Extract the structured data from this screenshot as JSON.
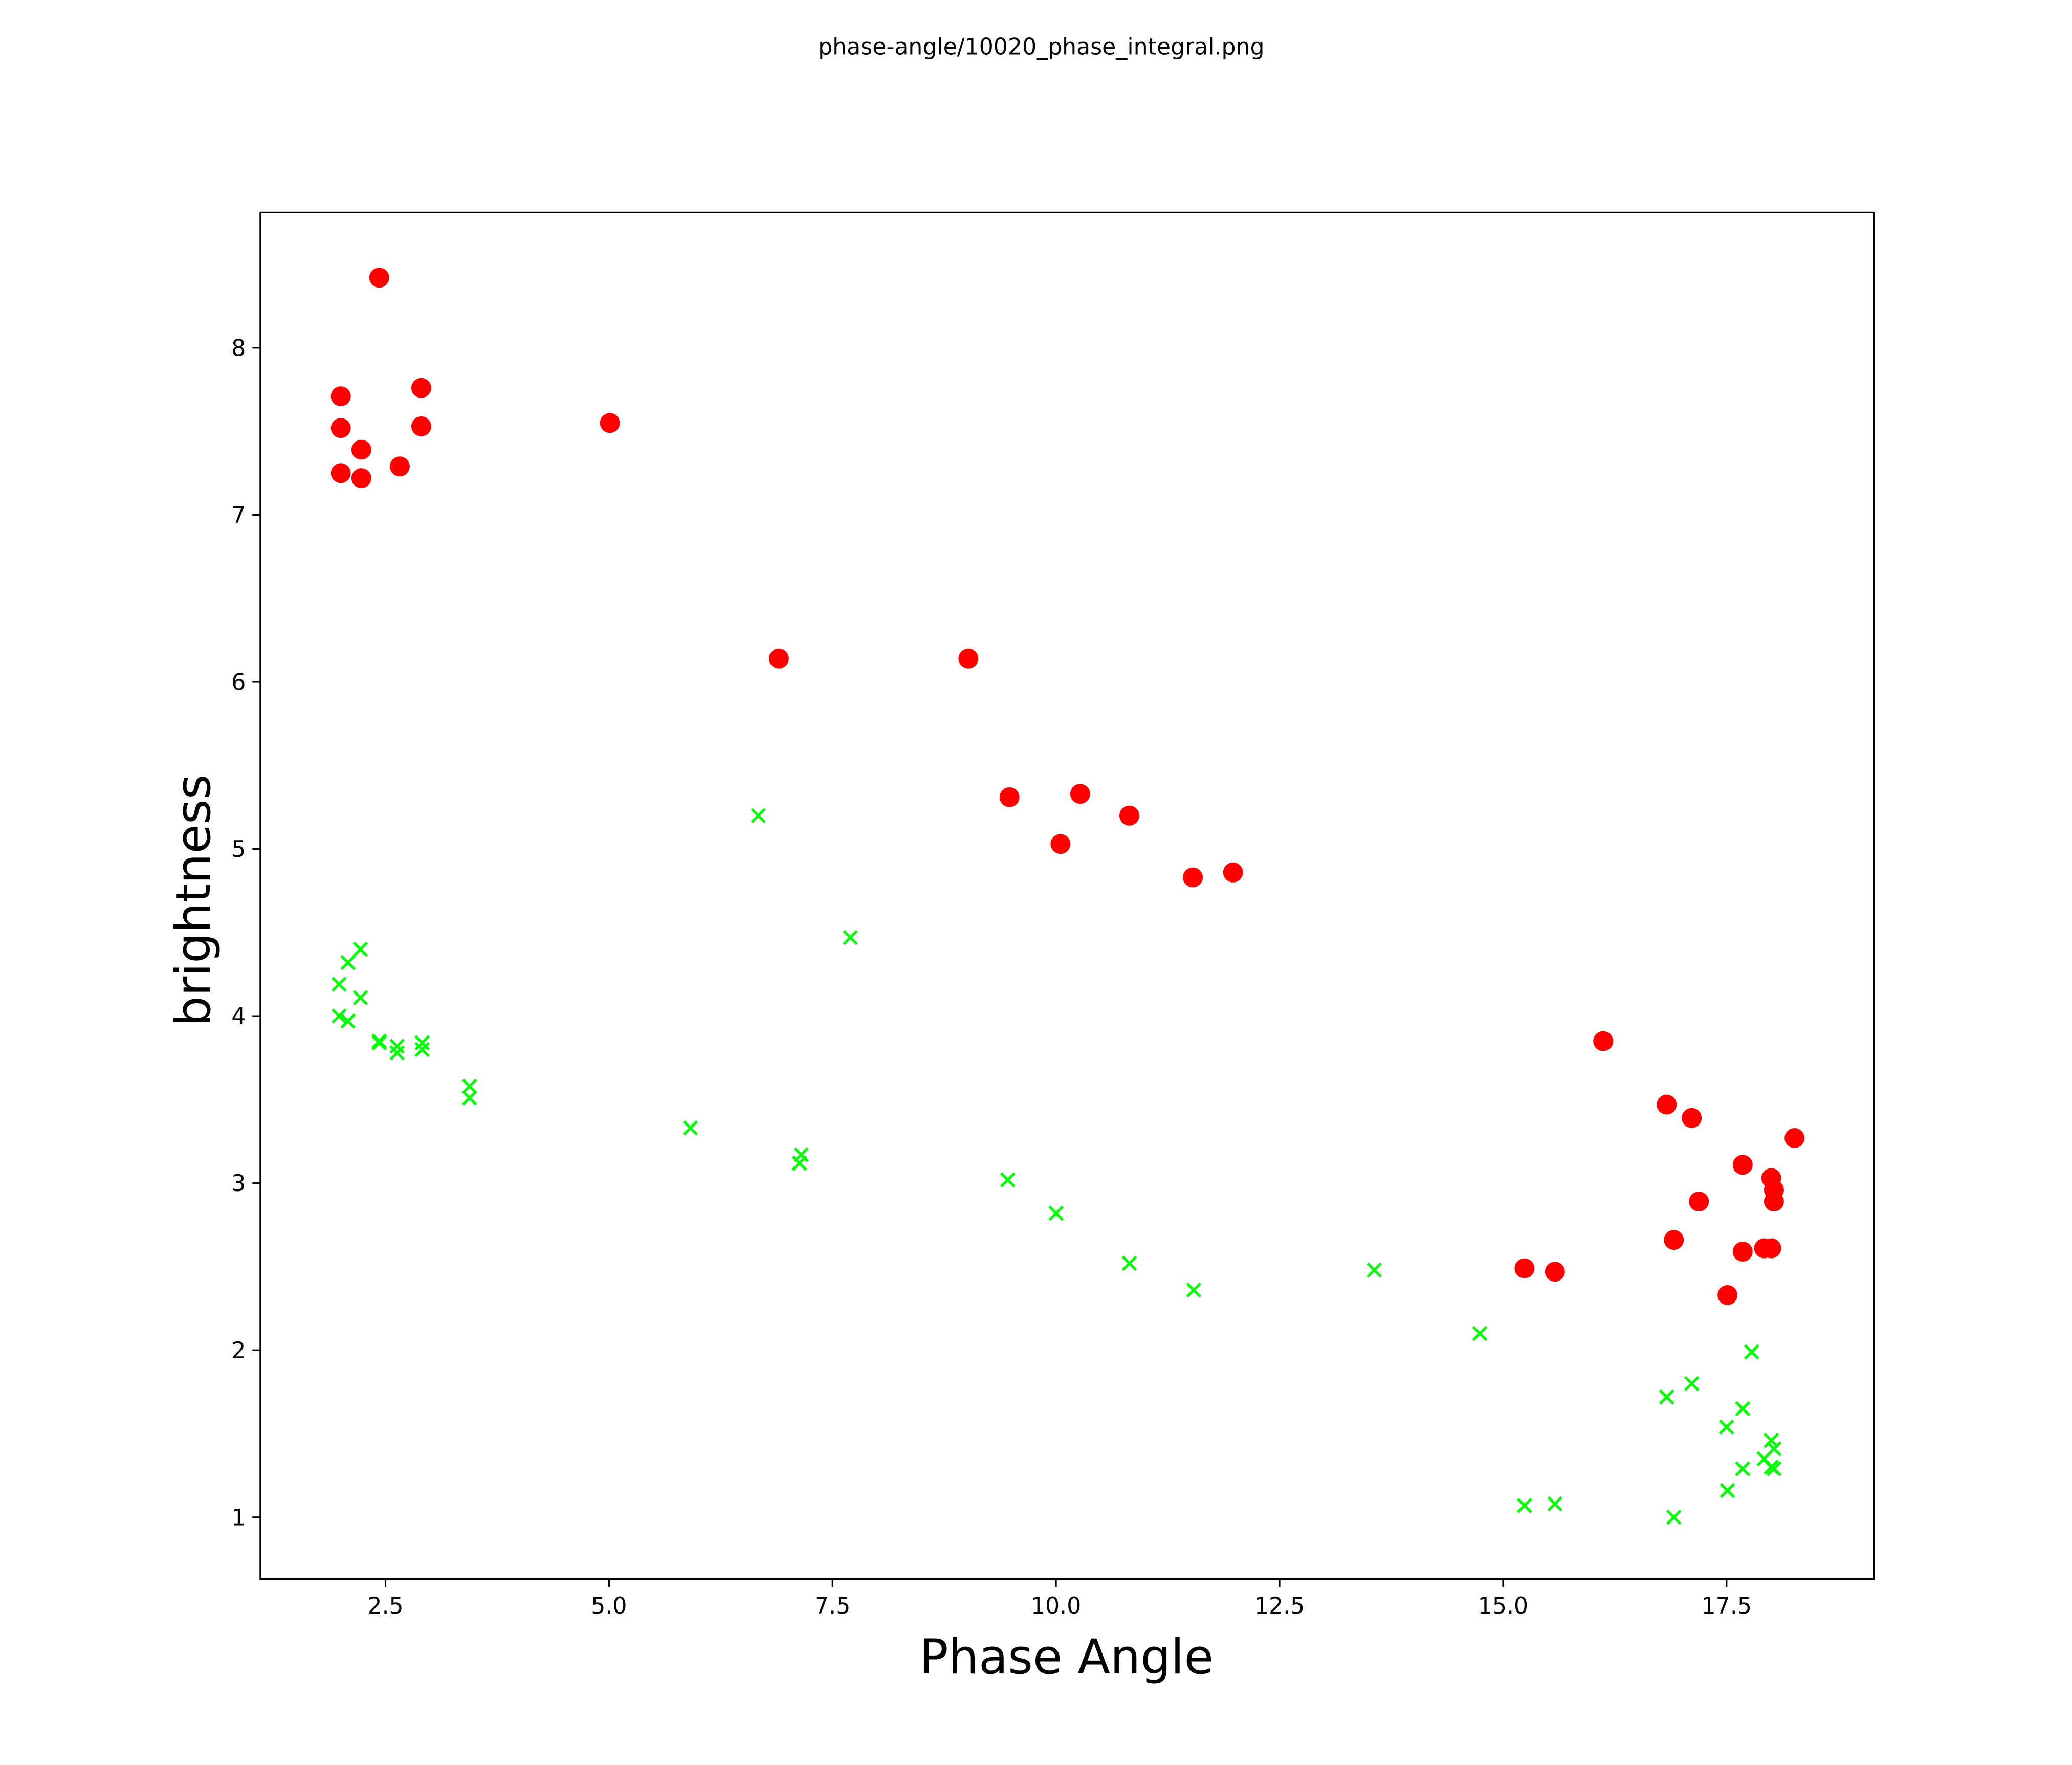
{
  "chart_data": {
    "type": "scatter",
    "title": "phase-angle/10020_phase_integral.png",
    "xlabel": "Phase Angle",
    "ylabel": "brightness",
    "xlim": [
      1.1,
      19.15
    ],
    "ylim": [
      0.63,
      8.81
    ],
    "xticks": [
      2.5,
      5.0,
      7.5,
      10.0,
      12.5,
      15.0,
      17.5
    ],
    "xtick_labels": [
      "2.5",
      "5.0",
      "7.5",
      "10.0",
      "12.5",
      "15.0",
      "17.5"
    ],
    "yticks": [
      1,
      2,
      3,
      4,
      5,
      6,
      7,
      8
    ],
    "ytick_labels": [
      "1",
      "2",
      "3",
      "4",
      "5",
      "6",
      "7",
      "8"
    ],
    "grid": false,
    "series": [
      {
        "name": "red-circles",
        "marker": "circle",
        "color": "#ff0000",
        "points": [
          [
            2.43,
            8.42
          ],
          [
            2.0,
            7.71
          ],
          [
            2.0,
            7.52
          ],
          [
            2.23,
            7.39
          ],
          [
            2.0,
            7.25
          ],
          [
            2.23,
            7.22
          ],
          [
            2.66,
            7.29
          ],
          [
            2.9,
            7.76
          ],
          [
            2.9,
            7.53
          ],
          [
            5.01,
            7.55
          ],
          [
            6.9,
            6.14
          ],
          [
            9.02,
            6.14
          ],
          [
            9.48,
            5.31
          ],
          [
            10.27,
            5.33
          ],
          [
            10.05,
            5.03
          ],
          [
            10.82,
            5.2
          ],
          [
            11.53,
            4.83
          ],
          [
            11.98,
            4.86
          ],
          [
            16.12,
            3.85
          ],
          [
            15.24,
            2.49
          ],
          [
            15.58,
            2.47
          ],
          [
            16.83,
            3.47
          ],
          [
            17.11,
            3.39
          ],
          [
            18.26,
            3.27
          ],
          [
            17.68,
            3.11
          ],
          [
            18.0,
            3.03
          ],
          [
            18.03,
            2.96
          ],
          [
            18.03,
            2.89
          ],
          [
            17.19,
            2.89
          ],
          [
            16.91,
            2.66
          ],
          [
            17.68,
            2.59
          ],
          [
            17.92,
            2.61
          ],
          [
            18.0,
            2.61
          ],
          [
            17.51,
            2.33
          ]
        ]
      },
      {
        "name": "green-crosses",
        "marker": "x",
        "color": "#00ff00",
        "points": [
          [
            6.67,
            5.2
          ],
          [
            7.7,
            4.47
          ],
          [
            2.22,
            4.4
          ],
          [
            2.08,
            4.32
          ],
          [
            1.98,
            4.19
          ],
          [
            2.22,
            4.11
          ],
          [
            1.98,
            4.0
          ],
          [
            2.08,
            3.97
          ],
          [
            2.43,
            3.85
          ],
          [
            2.43,
            3.84
          ],
          [
            2.63,
            3.82
          ],
          [
            2.63,
            3.78
          ],
          [
            2.91,
            3.84
          ],
          [
            2.91,
            3.8
          ],
          [
            3.44,
            3.58
          ],
          [
            3.44,
            3.51
          ],
          [
            5.91,
            3.33
          ],
          [
            7.15,
            3.17
          ],
          [
            7.13,
            3.12
          ],
          [
            9.46,
            3.02
          ],
          [
            10.0,
            2.82
          ],
          [
            10.82,
            2.52
          ],
          [
            11.54,
            2.36
          ],
          [
            13.56,
            2.48
          ],
          [
            14.74,
            2.1
          ],
          [
            15.24,
            1.07
          ],
          [
            15.58,
            1.08
          ],
          [
            16.91,
            1.0
          ],
          [
            16.83,
            1.72
          ],
          [
            17.11,
            1.8
          ],
          [
            17.78,
            1.99
          ],
          [
            17.68,
            1.65
          ],
          [
            17.5,
            1.54
          ],
          [
            18.0,
            1.46
          ],
          [
            18.03,
            1.41
          ],
          [
            17.92,
            1.35
          ],
          [
            17.68,
            1.29
          ],
          [
            18.0,
            1.3
          ],
          [
            18.03,
            1.29
          ],
          [
            17.51,
            1.16
          ]
        ]
      }
    ]
  }
}
